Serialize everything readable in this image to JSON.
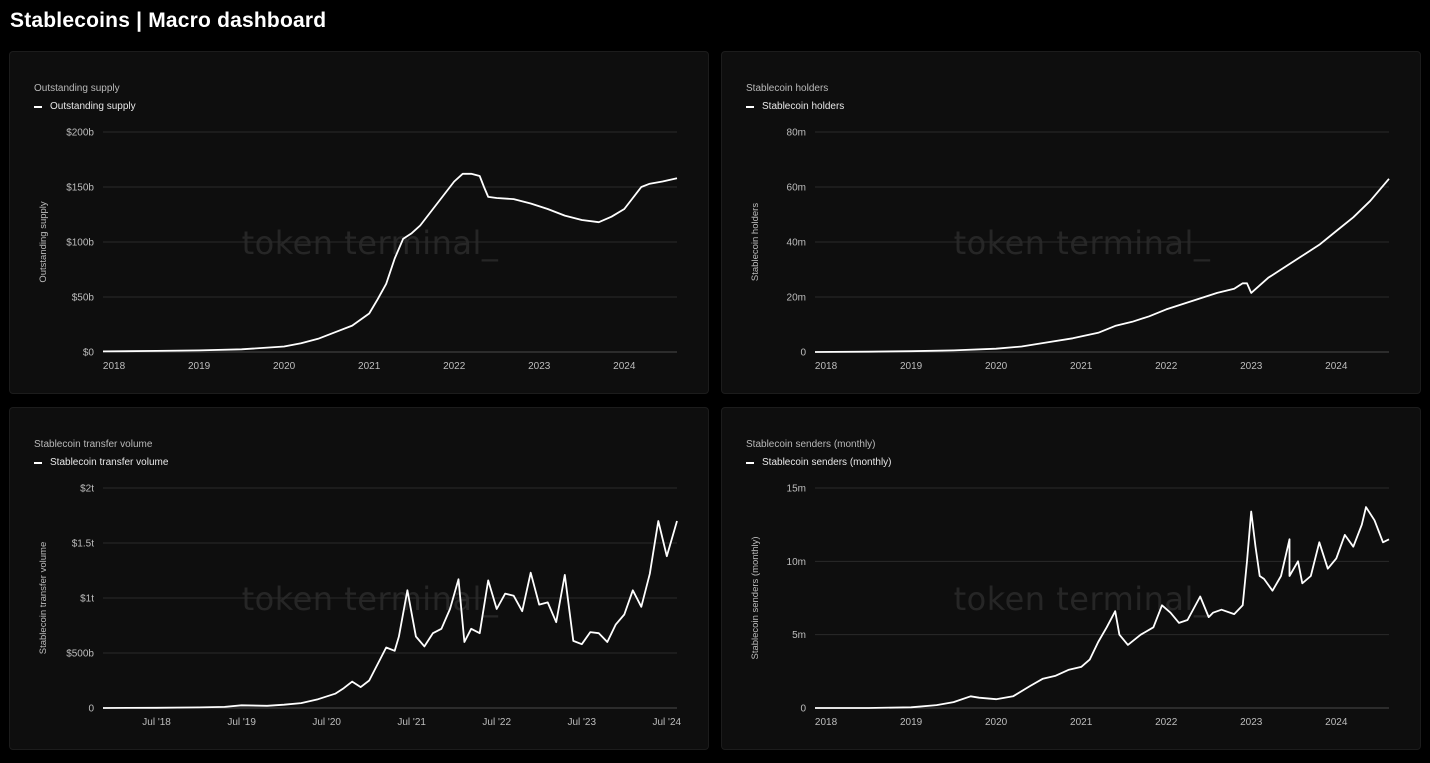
{
  "page": {
    "title": "Stablecoins | Macro dashboard"
  },
  "watermark": "token terminal_",
  "colors": {
    "background": "#000000",
    "panel": "#0e0e0e",
    "line": "#ffffff",
    "grid": "#2a2a2a"
  },
  "chart_data": [
    {
      "id": "supply",
      "type": "line",
      "title": "Outstanding supply",
      "legend": "Outstanding supply",
      "ylabel": "Outstanding supply",
      "xlabel": "",
      "ylim": [
        0,
        200
      ],
      "xlim": [
        2017.87,
        2024.62
      ],
      "y_ticks": [
        {
          "v": 0,
          "label": "$0"
        },
        {
          "v": 50,
          "label": "$50b"
        },
        {
          "v": 100,
          "label": "$100b"
        },
        {
          "v": 150,
          "label": "$150b"
        },
        {
          "v": 200,
          "label": "$200b"
        }
      ],
      "x_ticks": [
        {
          "v": 2018,
          "label": "2018"
        },
        {
          "v": 2019,
          "label": "2019"
        },
        {
          "v": 2020,
          "label": "2020"
        },
        {
          "v": 2021,
          "label": "2021"
        },
        {
          "v": 2022,
          "label": "2022"
        },
        {
          "v": 2023,
          "label": "2023"
        },
        {
          "v": 2024,
          "label": "2024"
        }
      ],
      "series": [
        {
          "x": [
            2017.87,
            2018.5,
            2019.0,
            2019.5,
            2020.0,
            2020.2,
            2020.4,
            2020.6,
            2020.8,
            2021.0,
            2021.1,
            2021.2,
            2021.3,
            2021.4,
            2021.5,
            2021.6,
            2021.7,
            2021.8,
            2021.9,
            2022.0,
            2022.1,
            2022.2,
            2022.3,
            2022.35,
            2022.4,
            2022.5,
            2022.7,
            2022.9,
            2023.1,
            2023.3,
            2023.5,
            2023.7,
            2023.85,
            2024.0,
            2024.1,
            2024.2,
            2024.3,
            2024.45,
            2024.62
          ],
          "y": [
            0.5,
            1,
            1.5,
            2.5,
            5,
            8,
            12,
            18,
            24,
            35,
            48,
            62,
            85,
            103,
            108,
            115,
            125,
            135,
            145,
            155,
            162,
            162,
            160,
            150,
            141,
            140,
            139,
            135,
            130,
            124,
            120,
            118,
            123,
            130,
            140,
            150,
            153,
            155,
            158
          ]
        }
      ]
    },
    {
      "id": "holders",
      "type": "line",
      "title": "Stablecoin holders",
      "legend": "Stablecoin holders",
      "ylabel": "Stablecoin holders",
      "xlabel": "",
      "ylim": [
        0,
        80
      ],
      "xlim": [
        2017.87,
        2024.62
      ],
      "y_ticks": [
        {
          "v": 0,
          "label": "0"
        },
        {
          "v": 20,
          "label": "20m"
        },
        {
          "v": 40,
          "label": "40m"
        },
        {
          "v": 60,
          "label": "60m"
        },
        {
          "v": 80,
          "label": "80m"
        }
      ],
      "x_ticks": [
        {
          "v": 2018,
          "label": "2018"
        },
        {
          "v": 2019,
          "label": "2019"
        },
        {
          "v": 2020,
          "label": "2020"
        },
        {
          "v": 2021,
          "label": "2021"
        },
        {
          "v": 2022,
          "label": "2022"
        },
        {
          "v": 2023,
          "label": "2023"
        },
        {
          "v": 2024,
          "label": "2024"
        }
      ],
      "series": [
        {
          "x": [
            2017.87,
            2018.5,
            2019.0,
            2019.5,
            2020.0,
            2020.3,
            2020.6,
            2020.9,
            2021.2,
            2021.4,
            2021.6,
            2021.8,
            2022.0,
            2022.2,
            2022.4,
            2022.6,
            2022.8,
            2022.9,
            2022.95,
            2023.0,
            2023.2,
            2023.4,
            2023.6,
            2023.8,
            2024.0,
            2024.2,
            2024.4,
            2024.62
          ],
          "y": [
            0,
            0.1,
            0.3,
            0.6,
            1.2,
            2.0,
            3.5,
            5,
            7,
            9.5,
            11,
            13,
            15.5,
            17.5,
            19.5,
            21.5,
            23,
            25,
            25,
            21.5,
            27,
            31,
            35,
            39,
            44,
            49,
            55,
            63
          ]
        }
      ]
    },
    {
      "id": "volume",
      "type": "line",
      "title": "Stablecoin transfer volume",
      "legend": "Stablecoin transfer volume",
      "ylabel": "Stablecoin transfer volume",
      "xlabel": "",
      "ylim": [
        0,
        2000
      ],
      "xlim": [
        2017.87,
        2024.62
      ],
      "y_ticks": [
        {
          "v": 0,
          "label": "0"
        },
        {
          "v": 500,
          "label": "$500b"
        },
        {
          "v": 1000,
          "label": "$1t"
        },
        {
          "v": 1500,
          "label": "$1.5t"
        },
        {
          "v": 2000,
          "label": "$2t"
        }
      ],
      "x_ticks": [
        {
          "v": 2018.5,
          "label": "Jul '18"
        },
        {
          "v": 2019.5,
          "label": "Jul '19"
        },
        {
          "v": 2020.5,
          "label": "Jul '20"
        },
        {
          "v": 2021.5,
          "label": "Jul '21"
        },
        {
          "v": 2022.5,
          "label": "Jul '22"
        },
        {
          "v": 2023.5,
          "label": "Jul '23"
        },
        {
          "v": 2024.5,
          "label": "Jul '24"
        }
      ],
      "series": [
        {
          "x": [
            2017.87,
            2018.5,
            2019.0,
            2019.3,
            2019.5,
            2019.8,
            2020.0,
            2020.2,
            2020.4,
            2020.6,
            2020.7,
            2020.8,
            2020.9,
            2021.0,
            2021.1,
            2021.2,
            2021.3,
            2021.35,
            2021.45,
            2021.55,
            2021.65,
            2021.75,
            2021.85,
            2021.95,
            2022.05,
            2022.12,
            2022.2,
            2022.3,
            2022.4,
            2022.5,
            2022.6,
            2022.7,
            2022.8,
            2022.9,
            2023.0,
            2023.1,
            2023.2,
            2023.3,
            2023.4,
            2023.5,
            2023.6,
            2023.7,
            2023.8,
            2023.9,
            2024.0,
            2024.1,
            2024.2,
            2024.3,
            2024.4,
            2024.5,
            2024.62
          ],
          "y": [
            0,
            2,
            5,
            10,
            25,
            20,
            30,
            45,
            80,
            130,
            180,
            240,
            190,
            250,
            400,
            550,
            520,
            650,
            1070,
            650,
            560,
            680,
            720,
            900,
            1170,
            600,
            720,
            680,
            1160,
            900,
            1040,
            1020,
            880,
            1230,
            940,
            960,
            780,
            1210,
            610,
            580,
            690,
            680,
            600,
            760,
            850,
            1070,
            920,
            1220,
            1700,
            1380,
            1700
          ]
        }
      ]
    },
    {
      "id": "senders",
      "type": "line",
      "title": "Stablecoin senders (monthly)",
      "legend": "Stablecoin senders (monthly)",
      "ylabel": "Stablecoin senders (monthly)",
      "xlabel": "",
      "ylim": [
        0,
        15
      ],
      "xlim": [
        2017.87,
        2024.62
      ],
      "y_ticks": [
        {
          "v": 0,
          "label": "0"
        },
        {
          "v": 5,
          "label": "5m"
        },
        {
          "v": 10,
          "label": "10m"
        },
        {
          "v": 15,
          "label": "15m"
        }
      ],
      "x_ticks": [
        {
          "v": 2018,
          "label": "2018"
        },
        {
          "v": 2019,
          "label": "2019"
        },
        {
          "v": 2020,
          "label": "2020"
        },
        {
          "v": 2021,
          "label": "2021"
        },
        {
          "v": 2022,
          "label": "2022"
        },
        {
          "v": 2023,
          "label": "2023"
        },
        {
          "v": 2024,
          "label": "2024"
        }
      ],
      "series": [
        {
          "x": [
            2017.87,
            2018.5,
            2019.0,
            2019.3,
            2019.5,
            2019.7,
            2019.8,
            2020.0,
            2020.2,
            2020.4,
            2020.55,
            2020.7,
            2020.85,
            2021.0,
            2021.1,
            2021.2,
            2021.3,
            2021.4,
            2021.45,
            2021.55,
            2021.7,
            2021.85,
            2021.95,
            2022.05,
            2022.15,
            2022.25,
            2022.4,
            2022.5,
            2022.55,
            2022.65,
            2022.8,
            2022.9,
            2022.95,
            2023.0,
            2023.05,
            2023.1,
            2023.15,
            2023.25,
            2023.35,
            2023.45,
            2023.45,
            2023.55,
            2023.6,
            2023.7,
            2023.8,
            2023.9,
            2024.0,
            2024.1,
            2024.2,
            2024.3,
            2024.35,
            2024.45,
            2024.55,
            2024.62
          ],
          "y": [
            0,
            0,
            0.05,
            0.2,
            0.4,
            0.8,
            0.7,
            0.6,
            0.8,
            1.5,
            2.0,
            2.2,
            2.6,
            2.8,
            3.3,
            4.5,
            5.5,
            6.6,
            5.0,
            4.3,
            5.0,
            5.5,
            7.0,
            6.5,
            5.8,
            6.0,
            7.6,
            6.2,
            6.5,
            6.7,
            6.4,
            7.0,
            10.0,
            13.4,
            11.0,
            9.0,
            8.8,
            8.0,
            9.0,
            11.5,
            9.0,
            10.0,
            8.5,
            9.0,
            11.3,
            9.5,
            10.2,
            11.8,
            11.0,
            12.5,
            13.7,
            12.8,
            11.3,
            11.5
          ]
        }
      ]
    }
  ]
}
